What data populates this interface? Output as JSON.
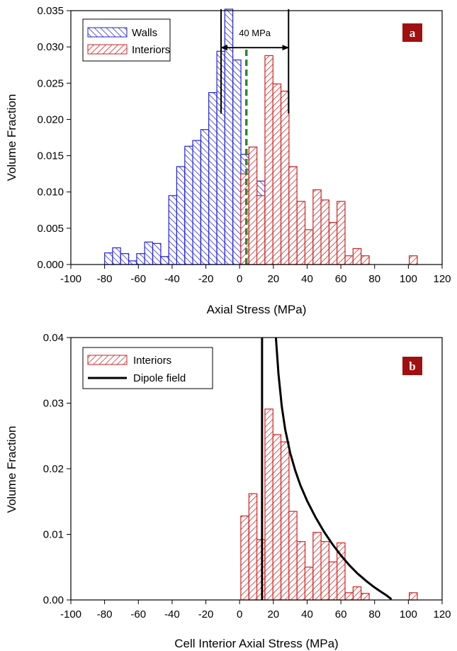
{
  "chart_data": [
    {
      "type": "bar",
      "panel": "a",
      "xlabel": "Axial Stress (MPa)",
      "ylabel": "Volume Fraction",
      "xlim": [
        -100,
        120
      ],
      "ylim": [
        0,
        0.035
      ],
      "xticks": [
        "-100",
        "-80",
        "-60",
        "-40",
        "-20",
        "0",
        "20",
        "40",
        "60",
        "80",
        "100",
        "120"
      ],
      "yticks": [
        "0.000",
        "0.005",
        "0.010",
        "0.015",
        "0.020",
        "0.025",
        "0.030",
        "0.035"
      ],
      "bin_width": 4.75,
      "grid": false,
      "legend_position": "top-left",
      "series": [
        {
          "name": "Walls",
          "color": "#2020e0",
          "x": [
            -77.6,
            -72.9,
            -68.1,
            -63.4,
            -58.6,
            -53.9,
            -49.1,
            -44.4,
            -39.6,
            -34.9,
            -30.1,
            -25.4,
            -20.6,
            -15.9,
            -11.1,
            -6.4,
            -1.6,
            3.1,
            7.9,
            12.6
          ],
          "values": [
            0.0016,
            0.0023,
            0.0015,
            0.0005,
            0.0015,
            0.0031,
            0.0029,
            0.0011,
            0.0095,
            0.0135,
            0.0163,
            0.0171,
            0.0186,
            0.0237,
            0.0294,
            0.0352,
            0.0282,
            0.0152,
            0.0101,
            0.0115
          ]
        },
        {
          "name": "Interiors",
          "color": "#d02020",
          "x": [
            3.1,
            7.9,
            12.6,
            17.4,
            22.1,
            26.9,
            31.6,
            36.4,
            41.1,
            45.9,
            50.6,
            55.4,
            60.1,
            64.9,
            69.6,
            74.4,
            79.1,
            83.9,
            88.6,
            93.4,
            98.1,
            102.9
          ],
          "values": [
            0.0125,
            0.0162,
            0.0095,
            0.0288,
            0.0249,
            0.0239,
            0.0135,
            0.0087,
            0.0048,
            0.0103,
            0.0089,
            0.0058,
            0.0087,
            0.0012,
            0.0022,
            0.0012,
            0.0,
            0.0,
            0.0,
            0.0,
            0.0,
            0.0012
          ]
        }
      ],
      "annotations": [
        {
          "type": "vline",
          "x": -11,
          "y_range": [
            0.0208,
            0.0352
          ],
          "color": "#000000"
        },
        {
          "type": "vline",
          "x": 29,
          "y_range": [
            0.0208,
            0.0352
          ],
          "color": "#000000"
        },
        {
          "type": "vline_dashed",
          "x": 4,
          "y_range": [
            0,
            0.0298
          ],
          "color": "#2a8a2a"
        },
        {
          "type": "double_arrow",
          "x_range": [
            -11,
            29
          ],
          "y": 0.0299,
          "label": "40 MPa"
        }
      ],
      "panel_label": "a",
      "panel_label_color": "#a01010"
    },
    {
      "type": "bar",
      "panel": "b",
      "xlabel": "Cell Interior Axial Stress (MPa)",
      "ylabel": "Volume Fraction",
      "xlim": [
        -100,
        120
      ],
      "ylim": [
        0,
        0.04
      ],
      "xticks": [
        "-100",
        "-80",
        "-60",
        "-40",
        "-20",
        "0",
        "20",
        "40",
        "60",
        "80",
        "100",
        "120"
      ],
      "yticks": [
        "0.00",
        "0.01",
        "0.02",
        "0.03",
        "0.04"
      ],
      "bin_width": 4.75,
      "grid": false,
      "legend_position": "top-left",
      "series": [
        {
          "name": "Interiors",
          "color": "#d02020",
          "x": [
            3.1,
            7.9,
            12.6,
            17.4,
            22.1,
            26.9,
            31.6,
            36.4,
            41.1,
            45.9,
            50.6,
            55.4,
            60.1,
            64.9,
            69.6,
            74.4,
            79.1,
            83.9,
            88.6,
            93.4,
            98.1,
            102.9
          ],
          "values": [
            0.0128,
            0.0162,
            0.0092,
            0.0291,
            0.0252,
            0.0241,
            0.0135,
            0.0089,
            0.005,
            0.0103,
            0.0089,
            0.0058,
            0.0087,
            0.0011,
            0.002,
            0.001,
            0.0,
            0.0,
            0.0,
            0.0,
            0.0,
            0.0011
          ]
        },
        {
          "name": "Dipole field",
          "type": "line",
          "color": "#000000",
          "x": [
            13.3,
            13.5,
            14,
            14.5,
            15,
            16,
            17,
            18,
            20,
            23,
            26,
            30,
            35,
            40,
            45,
            50,
            55,
            60,
            65,
            70,
            75,
            80,
            84,
            87,
            89,
            90
          ],
          "values": [
            0.04,
            0.03,
            0.02,
            0.012,
            0.007,
            0.004,
            0.002,
            0.001,
            0.0,
            0.0,
            0.0,
            0.0,
            0.0,
            0.0,
            0.0,
            0.0,
            0.0,
            0.0,
            0.0,
            0.0,
            0.0,
            0.0,
            0.0,
            0.0,
            0.0,
            0.0
          ],
          "right_branch_x": [
            21.5,
            23,
            25,
            27,
            30,
            33,
            36,
            40,
            45,
            50,
            55,
            60,
            65,
            70,
            75,
            80,
            84,
            87,
            89,
            90
          ],
          "right_branch_y": [
            0.04,
            0.0345,
            0.0295,
            0.026,
            0.0224,
            0.0197,
            0.0175,
            0.0151,
            0.0126,
            0.0104,
            0.0085,
            0.0068,
            0.0053,
            0.004,
            0.0029,
            0.0019,
            0.0012,
            0.0007,
            0.0003,
            0.0001
          ]
        }
      ],
      "panel_label": "b",
      "panel_label_color": "#a01010"
    }
  ]
}
